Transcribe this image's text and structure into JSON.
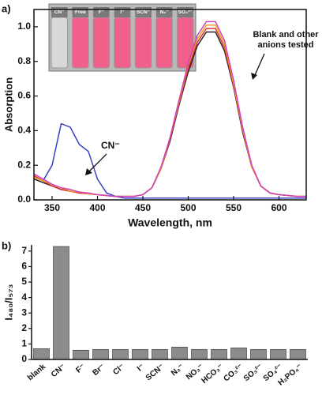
{
  "chart_data": [
    {
      "type": "line",
      "panel_label": "a)",
      "xlabel": "Wavelength, nm",
      "ylabel": "Absorption",
      "x": [
        330,
        340,
        350,
        360,
        370,
        380,
        390,
        400,
        410,
        420,
        430,
        440,
        450,
        460,
        470,
        480,
        490,
        500,
        510,
        520,
        530,
        540,
        550,
        560,
        570,
        580,
        590,
        600,
        610,
        620,
        630
      ],
      "series": [
        {
          "color": "#3a3fc8",
          "values": [
            0.13,
            0.11,
            0.2,
            0.44,
            0.42,
            0.32,
            0.28,
            0.12,
            0.04,
            0.02,
            0.01,
            0.01,
            0.01,
            0.01,
            0.01,
            0.01,
            0.01,
            0.01,
            0.01,
            0.01,
            0.01,
            0.01,
            0.01,
            0.01,
            0.01,
            0.01,
            0.01,
            0.01,
            0.01,
            0.01,
            0.01
          ]
        },
        {
          "color": "#222222",
          "values": [
            0.12,
            0.1,
            0.08,
            0.06,
            0.05,
            0.04,
            0.035,
            0.03,
            0.025,
            0.02,
            0.02,
            0.02,
            0.03,
            0.07,
            0.18,
            0.34,
            0.55,
            0.74,
            0.89,
            0.97,
            0.97,
            0.86,
            0.65,
            0.39,
            0.19,
            0.08,
            0.04,
            0.03,
            0.025,
            0.02,
            0.02
          ]
        },
        {
          "color": "#e03030",
          "values": [
            0.14,
            0.11,
            0.08,
            0.06,
            0.05,
            0.04,
            0.035,
            0.03,
            0.025,
            0.02,
            0.02,
            0.02,
            0.03,
            0.07,
            0.18,
            0.35,
            0.56,
            0.76,
            0.91,
            0.99,
            0.99,
            0.88,
            0.66,
            0.4,
            0.19,
            0.08,
            0.04,
            0.03,
            0.025,
            0.02,
            0.02
          ]
        },
        {
          "color": "#f0a020",
          "values": [
            0.13,
            0.11,
            0.09,
            0.07,
            0.05,
            0.045,
            0.035,
            0.03,
            0.025,
            0.02,
            0.02,
            0.02,
            0.03,
            0.07,
            0.18,
            0.36,
            0.57,
            0.78,
            0.93,
            1.01,
            1.01,
            0.9,
            0.67,
            0.41,
            0.19,
            0.08,
            0.04,
            0.03,
            0.025,
            0.02,
            0.02
          ]
        },
        {
          "color": "#d040c0",
          "values": [
            0.15,
            0.12,
            0.09,
            0.07,
            0.06,
            0.045,
            0.04,
            0.03,
            0.025,
            0.02,
            0.02,
            0.02,
            0.03,
            0.07,
            0.19,
            0.36,
            0.58,
            0.79,
            0.95,
            1.03,
            1.03,
            0.92,
            0.69,
            0.42,
            0.2,
            0.08,
            0.04,
            0.03,
            0.025,
            0.02,
            0.02
          ]
        }
      ],
      "xlim": [
        330,
        630
      ],
      "xticks": [
        350,
        400,
        450,
        500,
        550,
        600
      ],
      "ylim": [
        0,
        1.1
      ],
      "yticks": [
        {
          "value": 0,
          "label": "0.0"
        },
        0.2,
        0.4,
        0.6,
        0.8,
        {
          "value": 1,
          "label": "1.0"
        }
      ],
      "annotations": [
        "CN⁻",
        "Blank and other anions tested"
      ],
      "inset_labels": [
        "CN⁻",
        "Free",
        "F⁻",
        "I⁻",
        "SCN⁻",
        "N₃⁻",
        "SO₄²⁻"
      ]
    },
    {
      "type": "bar",
      "panel_label": "b)",
      "ylabel": "I₄₈₀/I₅₇₃",
      "color": "#8c8c8c",
      "categories": [
        "blank",
        "CN⁻",
        "F⁻",
        "Br⁻",
        "Cl⁻",
        "I⁻",
        "SCN⁻",
        "N₃⁻",
        "NO₃⁻",
        "HCO₃⁻",
        "CO₃²⁻",
        "SO₃²⁻",
        "SO₄²⁻",
        "H₂PO₄⁻"
      ],
      "values": [
        0.7,
        7.3,
        0.6,
        0.65,
        0.65,
        0.65,
        0.65,
        0.8,
        0.65,
        0.65,
        0.75,
        0.65,
        0.65,
        0.65
      ],
      "ylim": [
        0,
        7.4
      ],
      "yticks": [
        0,
        1,
        2,
        3,
        4,
        5,
        6,
        7
      ]
    }
  ]
}
